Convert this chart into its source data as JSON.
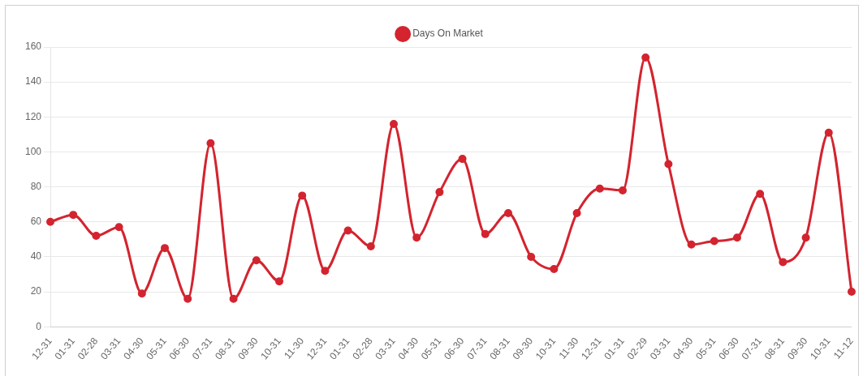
{
  "chart_data": {
    "type": "line",
    "categories": [
      "12-31",
      "01-31",
      "02-28",
      "03-31",
      "04-30",
      "05-31",
      "06-30",
      "07-31",
      "08-31",
      "09-30",
      "10-31",
      "11-30",
      "12-31",
      "01-31",
      "02-28",
      "03-31",
      "04-30",
      "05-31",
      "06-30",
      "07-31",
      "08-31",
      "09-30",
      "10-31",
      "11-30",
      "12-31",
      "01-31",
      "02-29",
      "03-31",
      "04-30",
      "05-31",
      "06-30",
      "07-31",
      "08-31",
      "09-30",
      "10-31",
      "11-12"
    ],
    "series": [
      {
        "name": "Days On Market",
        "color": "#d3242f",
        "values": [
          60,
          64,
          52,
          57,
          19,
          45,
          16,
          105,
          16,
          38,
          26,
          75,
          32,
          55,
          46,
          116,
          51,
          77,
          96,
          53,
          65,
          40,
          33,
          65,
          79,
          78,
          154,
          93,
          47,
          49,
          51,
          76,
          37,
          51,
          111,
          20
        ]
      }
    ],
    "ylim": [
      0,
      160
    ],
    "yticks": [
      0,
      20,
      40,
      60,
      80,
      100,
      120,
      140,
      160
    ],
    "grid": "y",
    "legend": "top",
    "marker": "circle"
  }
}
